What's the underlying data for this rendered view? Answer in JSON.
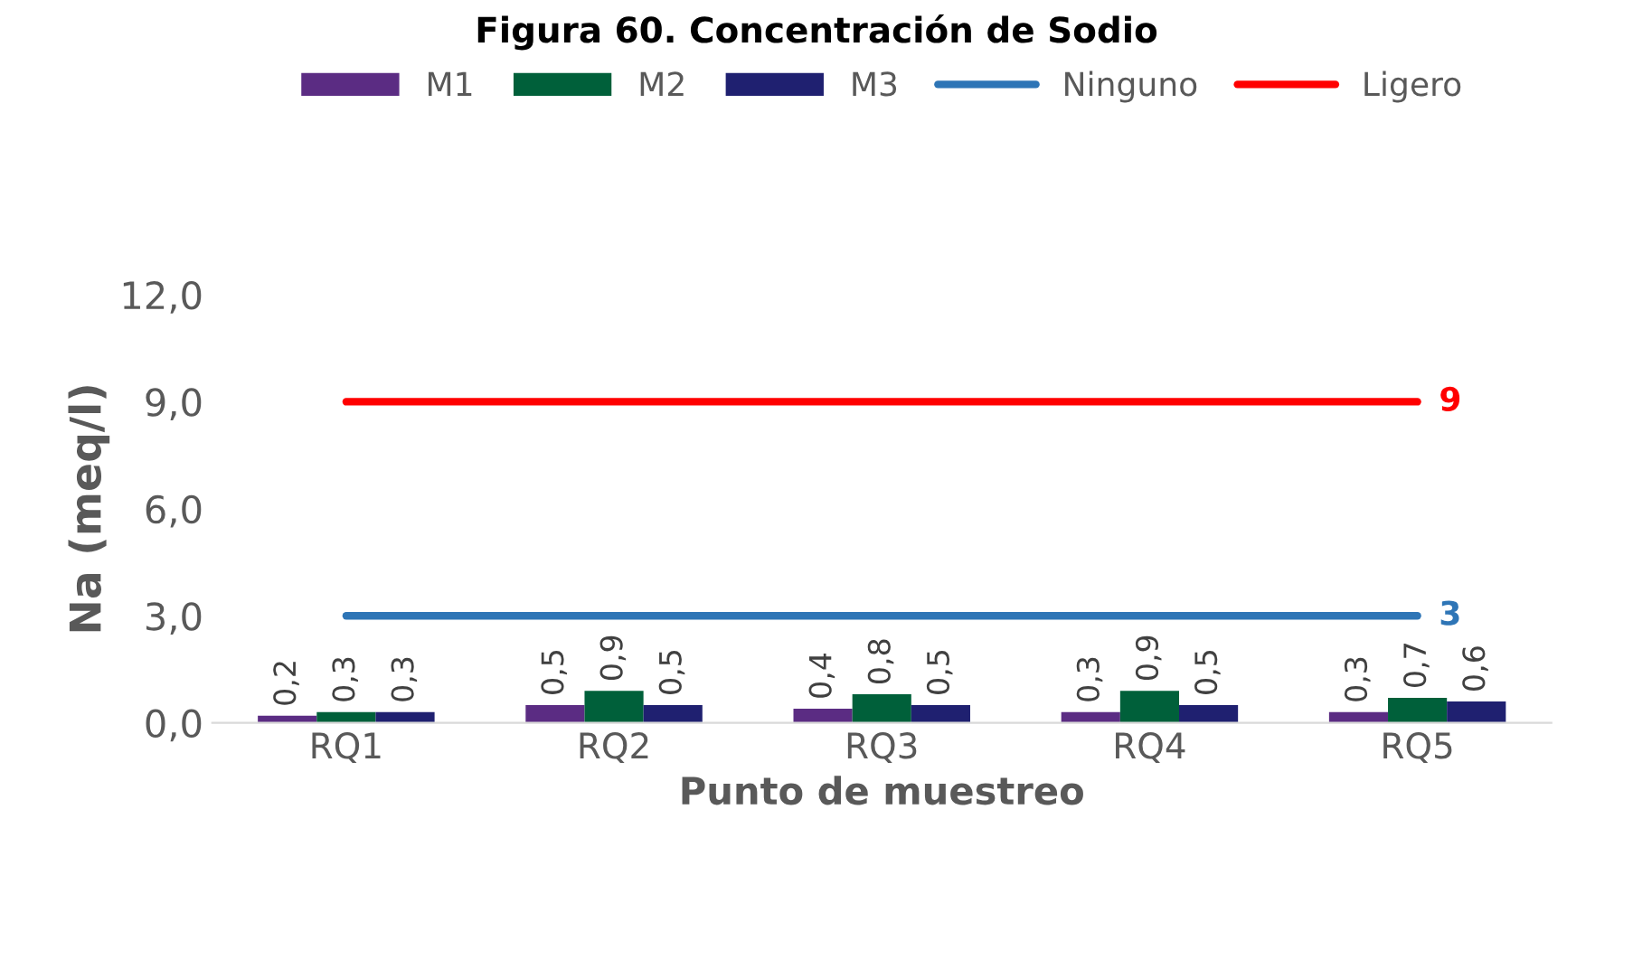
{
  "chart_data": {
    "type": "bar",
    "title": "Figura 60. Concentración de Sodio",
    "xlabel": "Punto de muestreo",
    "ylabel": "Na (meq/l)",
    "categories": [
      "RQ1",
      "RQ2",
      "RQ3",
      "RQ4",
      "RQ5"
    ],
    "series": [
      {
        "name": "M1",
        "color": "#5b2c83",
        "values": [
          0.2,
          0.5,
          0.4,
          0.3,
          0.3
        ],
        "value_labels": [
          "0,2",
          "0,5",
          "0,4",
          "0,3",
          "0,3"
        ]
      },
      {
        "name": "M2",
        "color": "#00603a",
        "values": [
          0.3,
          0.9,
          0.8,
          0.9,
          0.7
        ],
        "value_labels": [
          "0,3",
          "0,9",
          "0,8",
          "0,9",
          "0,7"
        ]
      },
      {
        "name": "M3",
        "color": "#1f2070",
        "values": [
          0.3,
          0.5,
          0.5,
          0.5,
          0.6
        ],
        "value_labels": [
          "0,3",
          "0,5",
          "0,5",
          "0,5",
          "0,6"
        ]
      },
      {
        "name": "Ninguno",
        "type": "line",
        "color": "#2e75b6",
        "values": [
          3,
          3,
          3,
          3,
          3
        ],
        "value_labels": [
          null,
          null,
          null,
          null,
          "3"
        ]
      },
      {
        "name": "Ligero",
        "type": "line",
        "color": "#ff0000",
        "values": [
          9,
          9,
          9,
          9,
          9
        ],
        "value_labels": [
          null,
          null,
          null,
          null,
          "9"
        ]
      }
    ],
    "ylim": [
      0,
      12
    ],
    "yticks": [
      {
        "value": 0,
        "label": "0,0"
      },
      {
        "value": 3,
        "label": "3,0"
      },
      {
        "value": 6,
        "label": "6,0"
      },
      {
        "value": 9,
        "label": "9,0"
      },
      {
        "value": 12,
        "label": "12,0"
      }
    ],
    "grid": false,
    "legend": "top"
  }
}
